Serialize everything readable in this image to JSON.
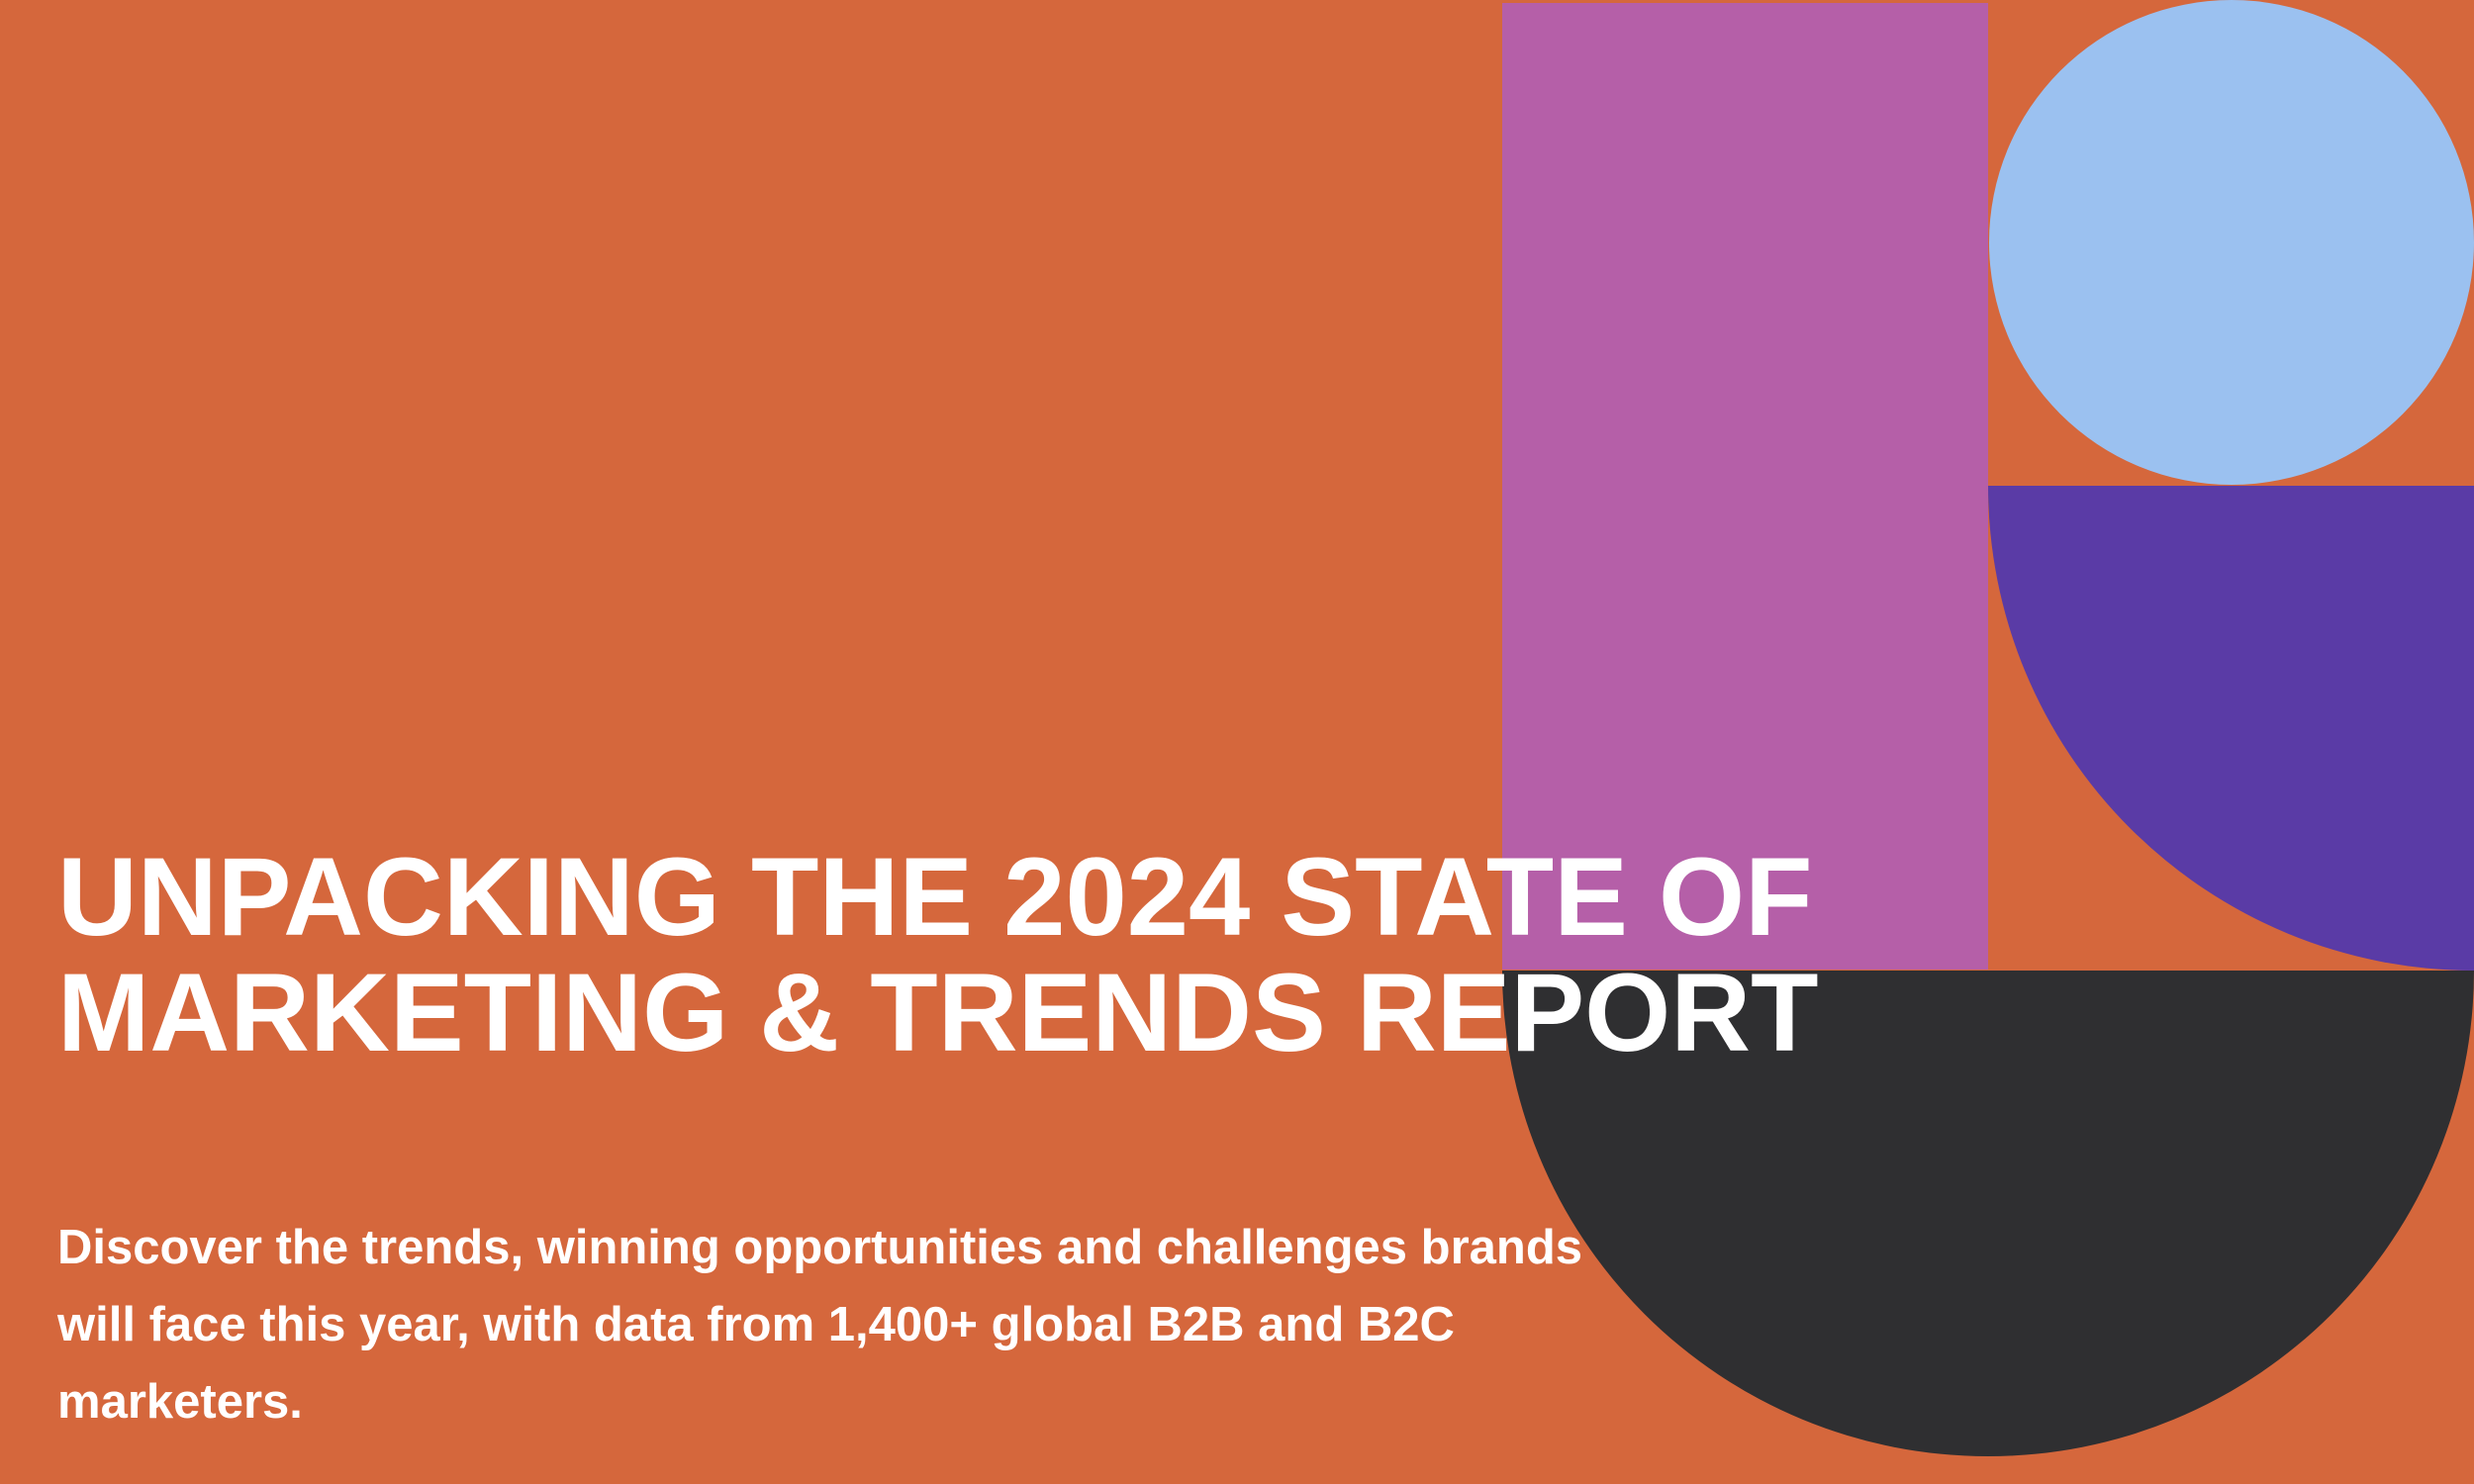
{
  "banner": {
    "title_lines": [
      "UNPACKING THE 2024 STATE OF",
      "MARKETING & TRENDS REPORT"
    ],
    "description_lines": [
      "Discover the trends, winning opportunities and challenges brands",
      "will face this year, with data from 1,400+ global B2B and B2C",
      "marketers."
    ]
  },
  "colors": {
    "background": "#D5673C",
    "pink_rectangle": "#B55FA8",
    "blue_circle": "#9BC1F0",
    "purple_quarter_circle": "#5A3BA6",
    "dark_half_circle": "#2F2F31",
    "text": "#FFFFFF"
  }
}
